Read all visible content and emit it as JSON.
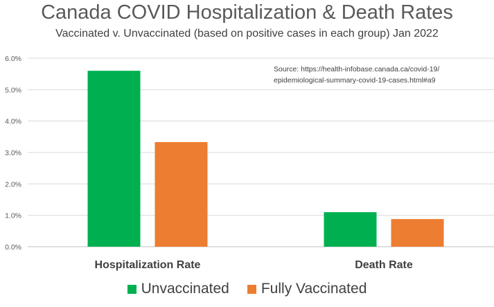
{
  "chart_data": {
    "type": "bar",
    "title": "Canada COVID Hospitalization & Death Rates",
    "subtitle": "Vaccinated v. Unvaccinated (based on positive cases in each group) Jan 2022",
    "categories": [
      "Hospitalization Rate",
      "Death Rate"
    ],
    "series": [
      {
        "name": "Unvaccinated",
        "color": "#00b050",
        "values": [
          5.6,
          1.1
        ]
      },
      {
        "name": "Fully Vaccinated",
        "color": "#ed7d31",
        "values": [
          3.33,
          0.88
        ]
      }
    ],
    "ylim": [
      0,
      6
    ],
    "yticks": [
      0,
      1,
      2,
      3,
      4,
      5,
      6
    ],
    "ytick_labels": [
      "0.0%",
      "1.0%",
      "2.0%",
      "3.0%",
      "4.0%",
      "5.0%",
      "6.0%"
    ],
    "grid": true,
    "legend_position": "bottom",
    "annotation": [
      "Source: https://health-infobase.canada.ca/covid-19/",
      "epidemiological-summary-covid-19-cases.html#a9"
    ]
  }
}
